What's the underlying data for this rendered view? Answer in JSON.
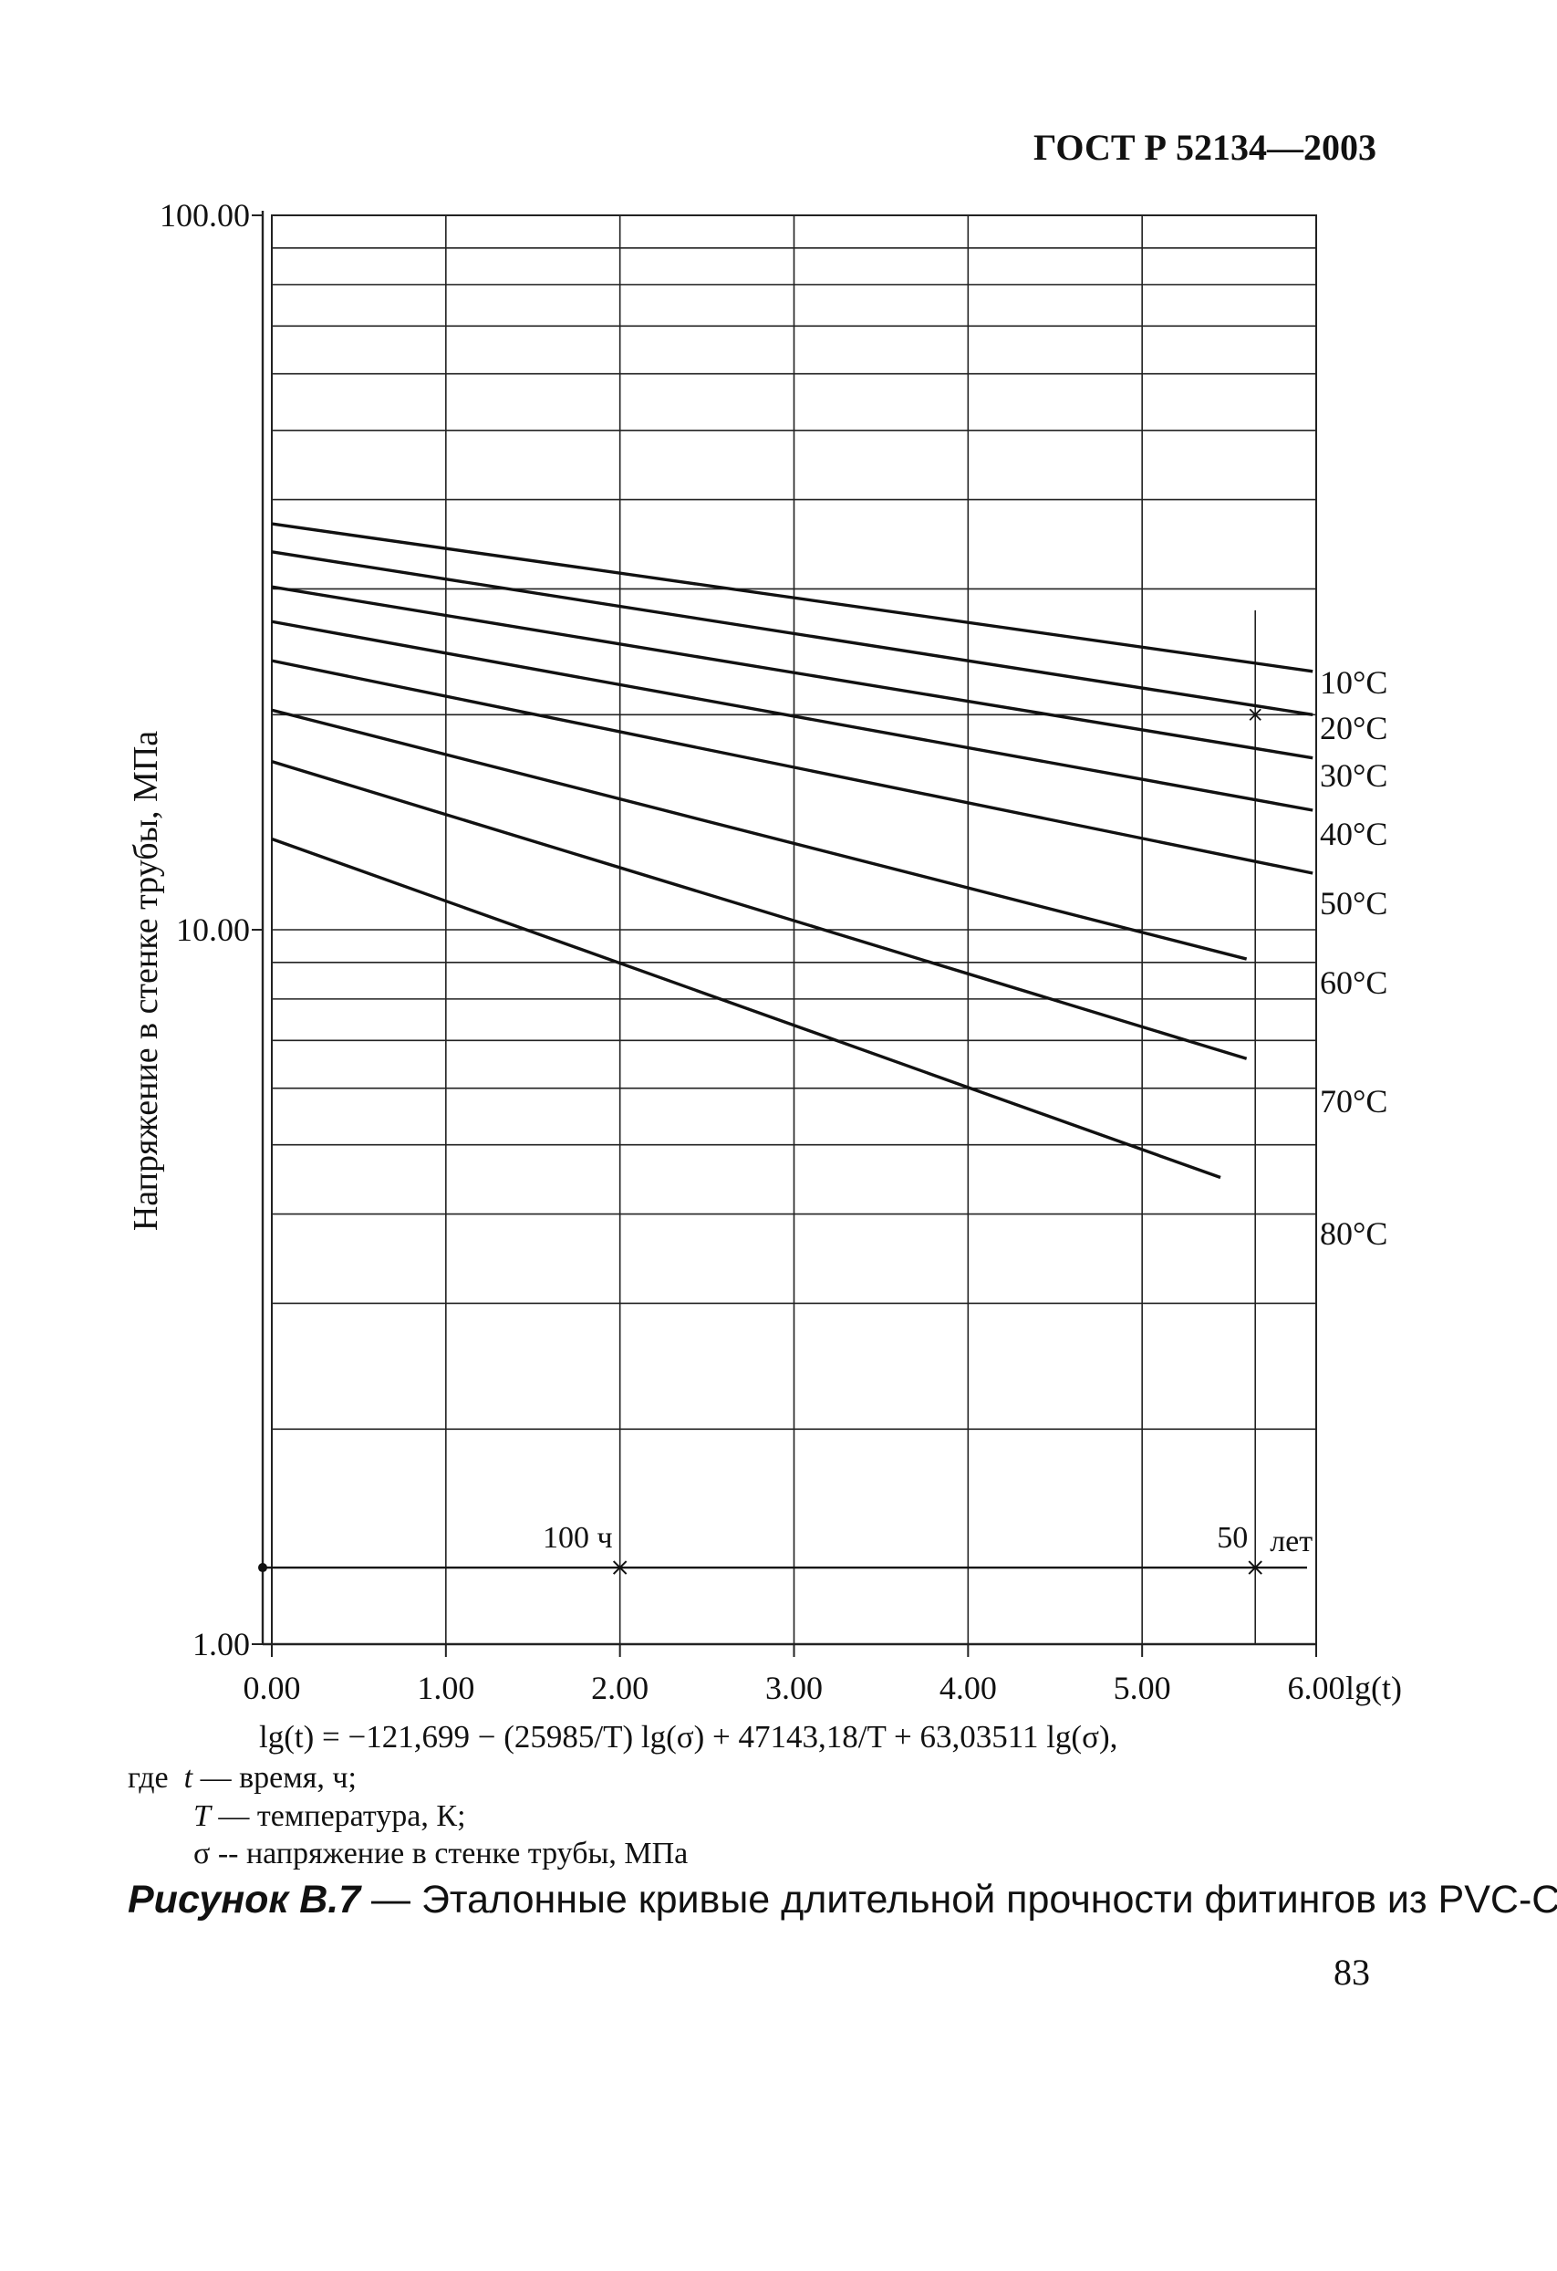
{
  "header": {
    "doc_id": "ГОСТ Р 52134—2003"
  },
  "chart_data": {
    "type": "line",
    "ylabel": "Напряжение в стенке трубы, МПа",
    "xlabel": "lg(t)",
    "xlim": [
      0,
      6
    ],
    "ylim": [
      1,
      100
    ],
    "y_scale": "log",
    "x_ticks": [
      "0.00",
      "1.00",
      "2.00",
      "3.00",
      "4.00",
      "5.00",
      "6.00"
    ],
    "y_ticks": [
      "1.00",
      "10.00",
      "100.00"
    ],
    "grid": true,
    "series": [
      {
        "name": "10°C",
        "x": [
          0,
          5.98
        ],
        "y": [
          37.0,
          23.0
        ]
      },
      {
        "name": "20°C",
        "x": [
          0,
          5.98
        ],
        "y": [
          33.8,
          20.0
        ]
      },
      {
        "name": "30°C",
        "x": [
          0,
          5.98
        ],
        "y": [
          30.2,
          17.4
        ]
      },
      {
        "name": "40°C",
        "x": [
          0,
          5.98
        ],
        "y": [
          27.0,
          14.7
        ]
      },
      {
        "name": "50°C",
        "x": [
          0,
          5.98
        ],
        "y": [
          23.8,
          12.0
        ]
      },
      {
        "name": "60°C",
        "x": [
          0,
          5.6
        ],
        "y": [
          20.3,
          9.1
        ]
      },
      {
        "name": "70°C",
        "x": [
          0,
          5.6
        ],
        "y": [
          17.2,
          6.6
        ]
      },
      {
        "name": "80°C",
        "x": [
          0,
          5.45
        ],
        "y": [
          13.4,
          4.5
        ]
      }
    ],
    "annotations": [
      {
        "text": "100 ч",
        "x": 2.0
      },
      {
        "text": "50",
        "x": 5.65
      },
      {
        "text": "лет",
        "x": 5.65
      }
    ],
    "marker_line_y": 1.28
  },
  "formula": "lg(t) = −121,699 − (25985/T) lg(σ) + 47143,18/T + 63,03511 lg(σ),",
  "where": {
    "lead": "где",
    "items": [
      {
        "symbol": "t",
        "text": "— время, ч;"
      },
      {
        "symbol": "T",
        "text": "— температура, К;"
      },
      {
        "symbol": "σ",
        "text": "-- напряжение в стенке трубы, МПа"
      }
    ]
  },
  "caption": {
    "lead": "Рисунок B.7",
    "text": " — Эталонные кривые длительной прочности фитингов из PVC-C"
  },
  "page_number": "83"
}
